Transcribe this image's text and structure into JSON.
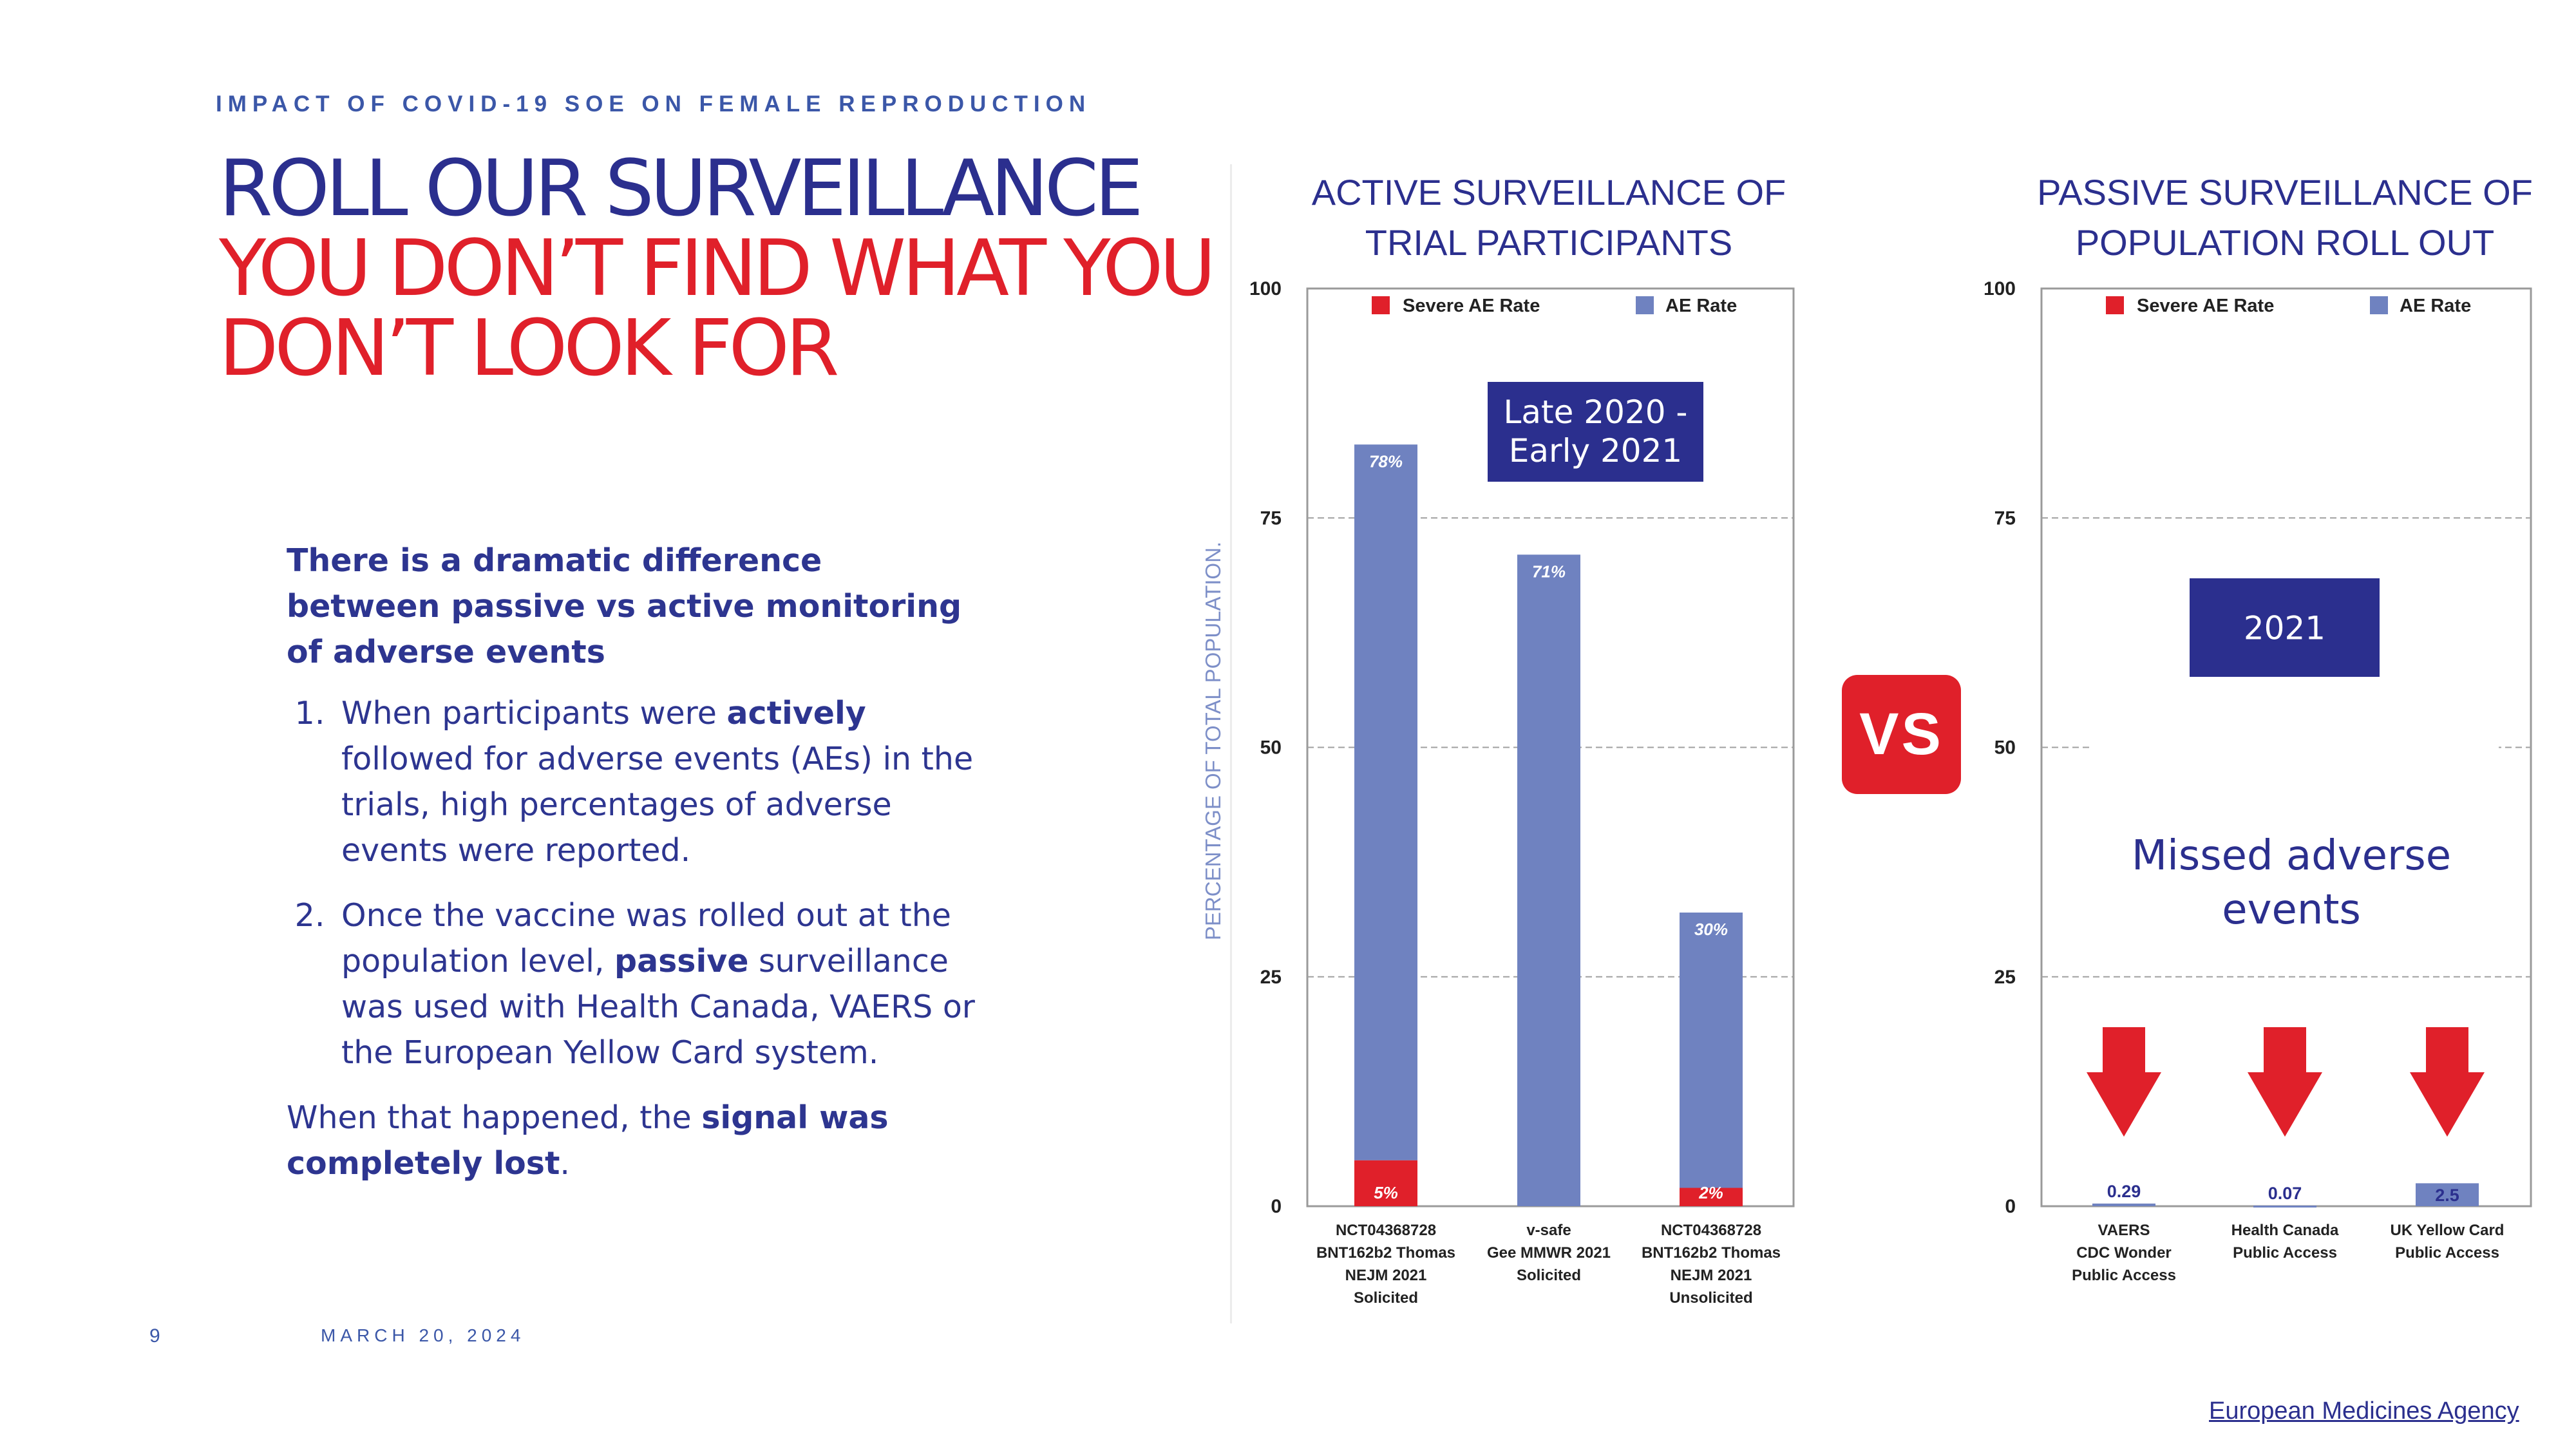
{
  "eyebrow": "IMPACT OF COVID-19 SOE ON FEMALE REPRODUCTION",
  "title": {
    "line1": "ROLL OUR SURVEILLANCE",
    "line2": "YOU DON’T FIND WHAT YOU",
    "line3": "DON’T LOOK FOR"
  },
  "body": {
    "lead": "There is a dramatic difference between passive vs active monitoring of adverse events",
    "item1": {
      "pre": "When participants were ",
      "bold": "actively",
      "post": " followed for adverse events (AEs) in the trials, high percentages of adverse events were reported."
    },
    "item2": {
      "pre": "Once the vaccine was rolled out at the population level, ",
      "bold": "passive",
      "post": " surveillance was used with Health Canada, VAERS or the European Yellow Card system."
    },
    "closing": {
      "pre": "When that happened, the ",
      "bold": "signal was completely lost",
      "post": "."
    }
  },
  "footer": {
    "page": "9",
    "date": "MARCH 20, 2024"
  },
  "source_link": "European Medicines Agency",
  "vs_label": "VS",
  "colors": {
    "navy": "#2b2f8e",
    "red": "#e0202a",
    "ae_blue": "#6f82c0",
    "severe_red": "#e0202a"
  },
  "chart_data": [
    {
      "type": "bar",
      "title": "ACTIVE SURVEILLANCE OF TRIAL PARTICIPANTS",
      "ylabel": "PERCENTAGE OF TOTAL POPULATION.",
      "ylim": [
        0,
        100
      ],
      "yticks": [
        0,
        25,
        50,
        75,
        100
      ],
      "legend": {
        "position": "top",
        "severe": "Severe AE Rate",
        "ae": "AE Rate"
      },
      "period_label": "Late 2020 - Early 2021",
      "categories": [
        [
          "NCT04368728",
          "BNT162b2 Thomas",
          "NEJM 2021",
          "Solicited"
        ],
        [
          "v-safe",
          "Gee MMWR 2021",
          "Solicited"
        ],
        [
          "NCT04368728",
          "BNT162b2 Thomas",
          "NEJM 2021",
          "Unsolicited"
        ]
      ],
      "bar_totals": [
        83,
        71,
        32
      ],
      "ae_labels": [
        "78%",
        "71%",
        "30%"
      ],
      "severe_values": [
        5,
        0,
        2
      ],
      "severe_labels": [
        "5%",
        "",
        "2%"
      ]
    },
    {
      "type": "bar",
      "title": "PASSIVE SURVEILLANCE OF POPULATION ROLL OUT",
      "ylim": [
        0,
        100
      ],
      "yticks": [
        0,
        25,
        50,
        75,
        100
      ],
      "legend": {
        "position": "top",
        "severe": "Severe AE Rate",
        "ae": "AE Rate"
      },
      "period_label": "2021",
      "annotation": "Missed adverse events",
      "categories": [
        [
          "VAERS",
          "CDC Wonder",
          "Public Access"
        ],
        [
          "Health Canada",
          "Public Access"
        ],
        [
          "UK Yellow Card",
          "Public Access"
        ]
      ],
      "values": [
        0.29,
        0.07,
        2.5
      ],
      "value_labels": [
        "0.29",
        "0.07",
        "2.5"
      ]
    }
  ]
}
